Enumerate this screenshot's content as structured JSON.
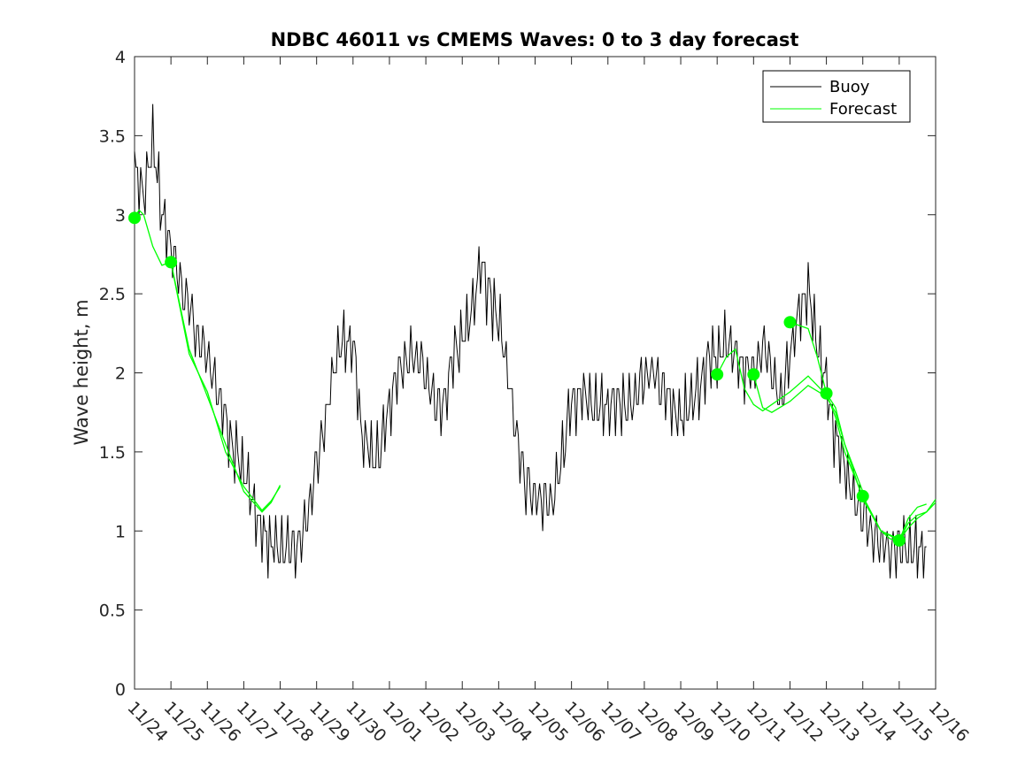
{
  "chart_data": {
    "type": "line",
    "title": "NDBC 46011 vs CMEMS Waves: 0 to 3 day forecast",
    "xlabel": "",
    "ylabel": "Wave height, m",
    "xlim": [
      0,
      22
    ],
    "ylim": [
      0,
      4
    ],
    "x_ticks": [
      "11/24",
      "11/25",
      "11/26",
      "11/27",
      "11/28",
      "11/29",
      "11/30",
      "12/01",
      "12/02",
      "12/03",
      "12/04",
      "12/05",
      "12/06",
      "12/07",
      "12/08",
      "12/09",
      "12/10",
      "12/11",
      "12/12",
      "12/13",
      "12/14",
      "12/15",
      "12/16"
    ],
    "y_ticks": [
      0,
      0.5,
      1,
      1.5,
      2,
      2.5,
      3,
      3.5,
      4
    ],
    "y_tick_labels": [
      "0",
      "0.5",
      "1",
      "1.5",
      "2",
      "2.5",
      "3",
      "3.5",
      "4"
    ],
    "legend": {
      "position": "top-right",
      "entries": [
        "Buoy",
        "Forecast"
      ]
    },
    "colors": {
      "buoy": "#000000",
      "forecast": "#00ff00"
    },
    "series": [
      {
        "name": "Buoy",
        "x_hours": [
          0,
          6,
          12,
          18,
          24,
          30,
          36,
          42,
          48,
          54,
          60,
          66,
          72,
          78,
          84,
          90,
          96,
          102,
          108,
          114,
          120,
          126,
          132,
          138,
          144,
          150,
          156,
          162,
          168,
          174,
          180,
          186,
          192,
          198,
          204,
          210,
          216,
          222,
          228,
          234,
          240,
          246,
          252,
          258,
          264,
          270,
          276,
          282,
          288,
          294,
          300,
          306,
          312,
          318,
          324,
          330,
          336,
          342,
          348,
          354,
          360,
          366,
          372,
          378,
          384,
          390,
          396,
          402,
          408,
          414,
          420,
          426,
          432,
          438,
          444,
          450,
          456,
          462,
          468,
          474,
          480,
          486,
          492,
          498,
          504,
          510,
          516,
          522
        ],
        "values": [
          3.3,
          3.1,
          3.5,
          3.0,
          2.8,
          2.6,
          2.4,
          2.2,
          2.1,
          1.9,
          1.7,
          1.5,
          1.4,
          1.2,
          1.0,
          0.9,
          0.9,
          0.9,
          0.9,
          1.1,
          1.4,
          1.7,
          2.1,
          2.2,
          2.2,
          1.6,
          1.5,
          1.5,
          1.8,
          2.0,
          2.1,
          2.1,
          2.0,
          1.8,
          1.8,
          2.1,
          2.2,
          2.4,
          2.7,
          2.5,
          2.3,
          2.0,
          1.6,
          1.3,
          1.2,
          1.2,
          1.2,
          1.5,
          1.8,
          1.9,
          1.8,
          1.8,
          1.8,
          1.8,
          1.8,
          1.8,
          2.0,
          2.0,
          1.9,
          1.8,
          1.7,
          1.8,
          1.9,
          2.1,
          2.1,
          2.2,
          2.1,
          2.0,
          2.0,
          2.2,
          2.0,
          1.8,
          2.1,
          2.4,
          2.5,
          2.2,
          1.9,
          1.6,
          1.4,
          1.2,
          1.1,
          1.0,
          0.9,
          0.9,
          0.9,
          0.9,
          0.9,
          0.9
        ]
      },
      {
        "name": "Forecast",
        "runs": [
          {
            "start_marker": {
              "x_hours": 0,
              "value": 2.98
            },
            "x_hours": [
              0,
              3,
              6,
              9,
              12,
              18,
              24,
              36,
              48,
              60,
              72,
              84,
              90,
              96
            ],
            "values": [
              2.98,
              3.03,
              3.0,
              2.9,
              2.8,
              2.68,
              2.7,
              2.15,
              1.85,
              1.55,
              1.25,
              1.12,
              1.18,
              1.29
            ]
          },
          {
            "start_marker": {
              "x_hours": 24,
              "value": 2.7
            },
            "x_hours": [
              24,
              36,
              48,
              60,
              72,
              84,
              90,
              96
            ],
            "values": [
              2.7,
              2.12,
              1.88,
              1.5,
              1.28,
              1.13,
              1.19,
              1.28
            ]
          },
          {
            "start_marker": {
              "x_hours": 384,
              "value": 1.99
            },
            "x_hours": [
              384,
              390,
              396,
              402,
              408,
              414,
              420,
              432,
              444,
              456
            ],
            "values": [
              1.99,
              2.1,
              2.15,
              1.9,
              1.8,
              1.76,
              1.8,
              1.88,
              1.98,
              1.86
            ]
          },
          {
            "start_marker": {
              "x_hours": 408,
              "value": 1.99
            },
            "x_hours": [
              408,
              414,
              420,
              432,
              444,
              456,
              462,
              468,
              480
            ],
            "values": [
              1.99,
              1.78,
              1.75,
              1.82,
              1.92,
              1.85,
              1.75,
              1.55,
              1.25
            ]
          },
          {
            "start_marker": {
              "x_hours": 432,
              "value": 2.32
            },
            "x_hours": [
              432,
              438,
              444,
              450,
              456,
              462,
              468,
              480,
              492,
              504
            ],
            "values": [
              2.32,
              2.3,
              2.28,
              2.1,
              1.87,
              1.78,
              1.55,
              1.2,
              1.0,
              0.95
            ]
          },
          {
            "start_marker": {
              "x_hours": 456,
              "value": 1.87
            },
            "x_hours": [
              456,
              462,
              468,
              480,
              492,
              504,
              510,
              516,
              522
            ],
            "values": [
              1.87,
              1.72,
              1.5,
              1.22,
              1.0,
              0.94,
              1.08,
              1.15,
              1.17
            ]
          },
          {
            "start_marker": {
              "x_hours": 480,
              "value": 1.22
            },
            "x_hours": [
              480,
              486,
              492,
              498,
              504,
              510,
              516,
              522,
              528
            ],
            "values": [
              1.22,
              1.1,
              1.0,
              0.95,
              0.94,
              1.05,
              1.1,
              1.12,
              1.18
            ]
          },
          {
            "start_marker": {
              "x_hours": 504,
              "value": 0.94
            },
            "x_hours": [
              504,
              510,
              516,
              522,
              528
            ],
            "values": [
              0.94,
              1.02,
              1.08,
              1.12,
              1.2
            ]
          }
        ]
      }
    ]
  }
}
